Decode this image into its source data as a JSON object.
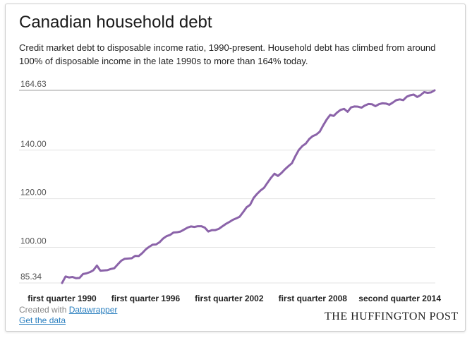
{
  "chart_data": {
    "type": "line",
    "title": "Canadian household debt",
    "subtitle": "Credit market debt to disposable income ratio, 1990-present. Household debt has climbed from around 100% of disposable income in the late 1990s to more than 164% today.",
    "xlabel": "",
    "ylabel": "",
    "y_ticks": [
      "164.63",
      "140.00",
      "120.00",
      "100.00",
      "85.34"
    ],
    "y_tick_values": [
      164.63,
      140.0,
      120.0,
      100.0,
      85.34
    ],
    "ylim": [
      85.34,
      164.63
    ],
    "x_ticks": [
      "first quarter 1990",
      "first quarter 1996",
      "first quarter 2002",
      "first quarter 2008",
      "second quarter 2014"
    ],
    "line_color": "#8b63a9",
    "grid": true,
    "series": [
      {
        "name": "",
        "values": [
          85.34,
          88.0,
          87.6,
          87.8,
          87.3,
          87.4,
          89.0,
          89.3,
          89.8,
          90.6,
          92.5,
          90.4,
          90.5,
          90.6,
          91.1,
          91.4,
          93.0,
          94.5,
          95.3,
          95.4,
          95.5,
          96.5,
          96.4,
          97.6,
          99.1,
          100.2,
          101.1,
          101.2,
          102.1,
          103.6,
          104.6,
          105.1,
          106.1,
          106.2,
          106.5,
          107.3,
          108.1,
          108.6,
          108.4,
          108.7,
          108.7,
          108.1,
          106.5,
          107.1,
          107.1,
          107.6,
          108.6,
          109.6,
          110.4,
          111.3,
          111.9,
          112.6,
          114.5,
          116.5,
          117.5,
          120.3,
          122.0,
          123.4,
          124.5,
          126.6,
          128.6,
          130.3,
          129.4,
          130.6,
          132.1,
          133.4,
          134.6,
          137.5,
          140.1,
          141.7,
          142.7,
          144.6,
          145.8,
          146.4,
          147.6,
          150.2,
          152.6,
          154.5,
          154.1,
          155.5,
          156.6,
          157.0,
          155.8,
          157.6,
          158.0,
          157.9,
          157.5,
          158.4,
          159.0,
          158.9,
          158.1,
          158.9,
          159.3,
          159.2,
          158.7,
          159.6,
          160.6,
          160.9,
          160.6,
          162.0,
          162.6,
          162.9,
          161.9,
          162.7,
          163.9,
          163.6,
          163.8,
          164.63
        ]
      }
    ]
  },
  "footer": {
    "created_prefix": "Created with ",
    "created_link": "Datawrapper",
    "get_data": "Get the data",
    "brand": "THE HUFFINGTON POST"
  }
}
